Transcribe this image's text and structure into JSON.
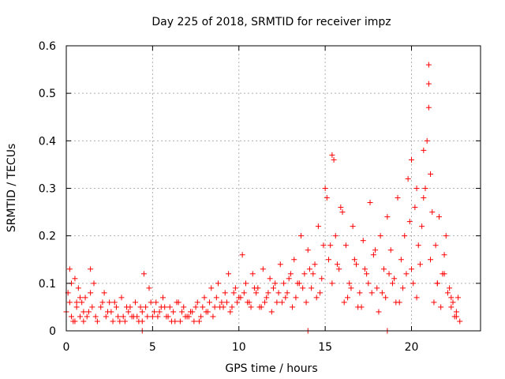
{
  "chart_data": {
    "type": "scatter",
    "title": "Day 225 of 2018, SRMTID for receiver impz",
    "xlabel": "GPS time / hours",
    "ylabel": "SRMTID / TECUs",
    "xlim": [
      0,
      24
    ],
    "ylim": [
      0,
      0.6
    ],
    "xticks": [
      0,
      5,
      10,
      15,
      20
    ],
    "xtick_labels": [
      "0",
      "5",
      "10",
      "15",
      "20"
    ],
    "yticks": [
      0,
      0.1,
      0.2,
      0.3,
      0.4,
      0.5,
      0.6
    ],
    "ytick_labels": [
      "0",
      "0.1",
      "0.2",
      "0.3",
      "0.4",
      "0.5",
      "0.6"
    ],
    "grid": true,
    "marker": "+",
    "color": "#ff0000",
    "series": [
      {
        "name": "SRMTID",
        "x": [
          0.0,
          0.1,
          0.2,
          0.3,
          0.3,
          0.4,
          0.5,
          0.6,
          0.7,
          0.8,
          0.9,
          1.0,
          1.1,
          1.2,
          1.4,
          1.5,
          1.6,
          1.8,
          2.0,
          2.2,
          2.3,
          2.5,
          2.7,
          2.9,
          3.0,
          3.2,
          3.4,
          3.6,
          3.8,
          4.0,
          4.2,
          4.4,
          4.5,
          4.6,
          4.8,
          5.0,
          5.2,
          5.4,
          5.6,
          5.8,
          6.0,
          6.2,
          6.4,
          6.6,
          6.8,
          7.0,
          7.2,
          7.4,
          7.6,
          7.8,
          8.0,
          8.2,
          8.4,
          8.6,
          8.8,
          9.0,
          9.2,
          9.4,
          9.6,
          9.8,
          10.0,
          10.2,
          10.4,
          10.6,
          10.8,
          11.0,
          11.2,
          11.4,
          11.6,
          11.8,
          12.0,
          12.2,
          12.4,
          12.6,
          12.8,
          13.0,
          13.2,
          13.4,
          13.6,
          13.8,
          14.0,
          14.2,
          14.4,
          14.6,
          14.8,
          15.0,
          15.2,
          15.4,
          15.6,
          15.8,
          16.0,
          16.2,
          16.4,
          16.6,
          16.8,
          17.0,
          17.2,
          17.4,
          17.6,
          17.8,
          18.0,
          18.2,
          18.4,
          18.6,
          18.8,
          19.0,
          19.2,
          19.4,
          19.6,
          19.8,
          20.0,
          20.2,
          20.4,
          20.6,
          20.8,
          20.9,
          21.0,
          21.0,
          21.0,
          21.1,
          21.2,
          21.4,
          21.6,
          21.8,
          22.0,
          22.2,
          22.4,
          22.6,
          22.8,
          0.2,
          0.5,
          0.8,
          1.3,
          1.7,
          2.1,
          2.6,
          3.1,
          3.5,
          3.9,
          4.3,
          4.7,
          5.1,
          5.5,
          5.9,
          6.3,
          6.7,
          7.1,
          7.5,
          7.9,
          8.3,
          8.7,
          9.1,
          9.5,
          9.9,
          10.3,
          10.7,
          11.1,
          11.5,
          11.9,
          12.3,
          12.7,
          13.1,
          13.5,
          13.9,
          14.3,
          14.7,
          15.1,
          15.3,
          15.5,
          15.7,
          16.1,
          16.5,
          16.9,
          17.3,
          17.7,
          18.1,
          18.5,
          18.9,
          19.3,
          19.7,
          19.9,
          20.1,
          20.3,
          20.5,
          20.7,
          21.3,
          21.5,
          21.7,
          21.9,
          22.1,
          22.3,
          22.5,
          22.7,
          0.6,
          1.0,
          1.4,
          2.4,
          2.8,
          3.3,
          3.7,
          4.1,
          4.4,
          4.9,
          5.3,
          5.7,
          6.1,
          6.5,
          6.9,
          7.3,
          7.7,
          8.1,
          8.5,
          8.9,
          9.3,
          9.7,
          10.1,
          10.5,
          10.9,
          11.3,
          11.7,
          12.1,
          12.5,
          12.9,
          13.3,
          13.7,
          14.1,
          14.5,
          14.9,
          15.4,
          15.9,
          16.3,
          16.7,
          17.1,
          17.5,
          17.9,
          18.3,
          18.7,
          19.1,
          19.5,
          20.0,
          20.3,
          20.7,
          21.1,
          21.5,
          21.9,
          22.3,
          22.6,
          14.0,
          18.6,
          4.4
        ],
        "y": [
          0.04,
          0.08,
          0.13,
          0.03,
          0.1,
          0.02,
          0.11,
          0.05,
          0.09,
          0.03,
          0.06,
          0.04,
          0.07,
          0.03,
          0.13,
          0.05,
          0.1,
          0.02,
          0.05,
          0.08,
          0.03,
          0.06,
          0.02,
          0.05,
          0.03,
          0.07,
          0.02,
          0.04,
          0.03,
          0.06,
          0.02,
          0.04,
          0.12,
          0.05,
          0.09,
          0.03,
          0.06,
          0.04,
          0.07,
          0.03,
          0.05,
          0.04,
          0.06,
          0.02,
          0.05,
          0.03,
          0.04,
          0.02,
          0.06,
          0.03,
          0.07,
          0.04,
          0.09,
          0.05,
          0.1,
          0.06,
          0.08,
          0.12,
          0.05,
          0.09,
          0.07,
          0.16,
          0.1,
          0.06,
          0.12,
          0.08,
          0.05,
          0.13,
          0.07,
          0.11,
          0.09,
          0.06,
          0.14,
          0.1,
          0.08,
          0.12,
          0.15,
          0.1,
          0.2,
          0.12,
          0.17,
          0.09,
          0.14,
          0.22,
          0.11,
          0.3,
          0.15,
          0.37,
          0.2,
          0.13,
          0.25,
          0.18,
          0.1,
          0.22,
          0.14,
          0.08,
          0.19,
          0.12,
          0.27,
          0.16,
          0.09,
          0.2,
          0.13,
          0.24,
          0.17,
          0.11,
          0.28,
          0.15,
          0.2,
          0.32,
          0.36,
          0.26,
          0.18,
          0.22,
          0.3,
          0.4,
          0.56,
          0.52,
          0.47,
          0.33,
          0.25,
          0.18,
          0.24,
          0.12,
          0.2,
          0.09,
          0.06,
          0.04,
          0.02,
          0.06,
          0.02,
          0.07,
          0.04,
          0.03,
          0.06,
          0.04,
          0.02,
          0.05,
          0.03,
          0.05,
          0.03,
          0.04,
          0.05,
          0.03,
          0.02,
          0.04,
          0.03,
          0.05,
          0.05,
          0.06,
          0.07,
          0.05,
          0.04,
          0.06,
          0.08,
          0.05,
          0.09,
          0.06,
          0.04,
          0.08,
          0.07,
          0.05,
          0.1,
          0.06,
          0.12,
          0.08,
          0.28,
          0.18,
          0.36,
          0.14,
          0.06,
          0.09,
          0.05,
          0.13,
          0.08,
          0.04,
          0.07,
          0.1,
          0.06,
          0.12,
          0.23,
          0.1,
          0.3,
          0.14,
          0.38,
          0.06,
          0.1,
          0.05,
          0.16,
          0.08,
          0.05,
          0.03,
          0.07,
          0.06,
          0.02,
          0.08,
          0.04,
          0.06,
          0.03,
          0.05,
          0.03,
          0.02,
          0.06,
          0.03,
          0.05,
          0.02,
          0.06,
          0.03,
          0.04,
          0.02,
          0.04,
          0.03,
          0.05,
          0.06,
          0.08,
          0.07,
          0.06,
          0.09,
          0.05,
          0.08,
          0.1,
          0.06,
          0.11,
          0.07,
          0.09,
          0.13,
          0.07,
          0.18,
          0.1,
          0.26,
          0.07,
          0.15,
          0.05,
          0.1,
          0.17,
          0.08,
          0.12,
          0.06,
          0.09,
          0.13,
          0.07,
          0.28,
          0.15,
          0.1,
          0.12,
          0.07,
          0.03,
          0.0,
          0.0,
          0.0
        ]
      }
    ]
  }
}
